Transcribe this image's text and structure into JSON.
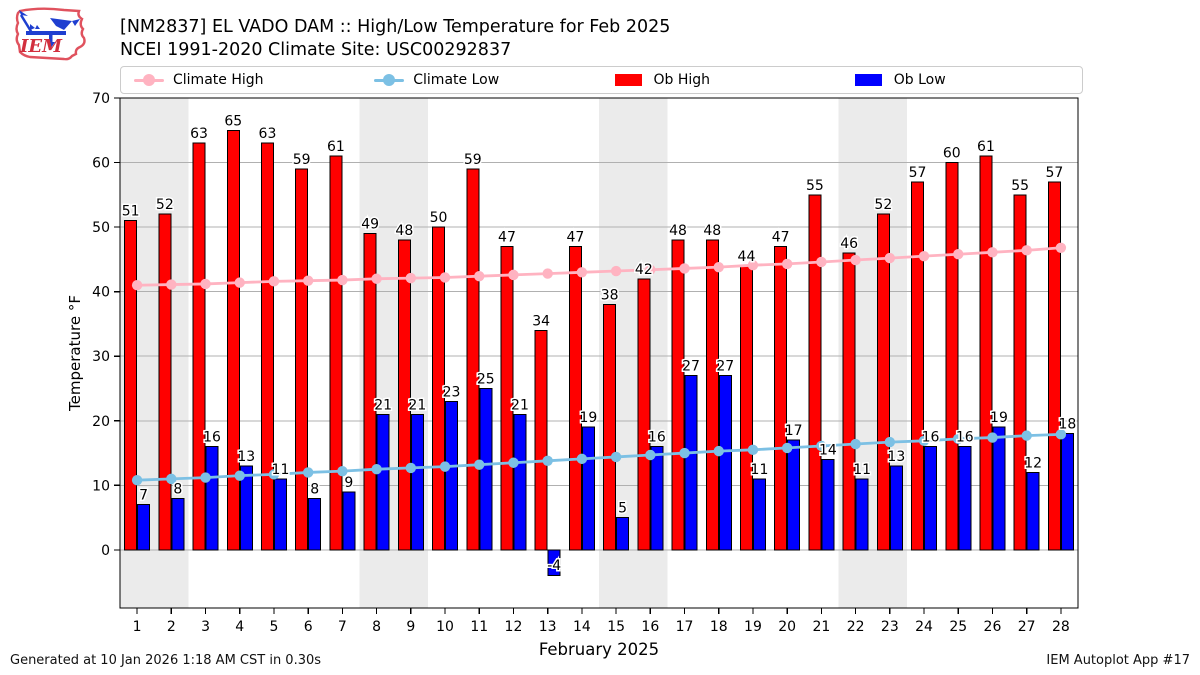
{
  "header": {
    "title_line1": "[NM2837] EL VADO DAM :: High/Low Temperature for Feb 2025",
    "title_line2": "NCEI 1991-2020 Climate Site: USC00292837",
    "logo_text": "IEM"
  },
  "legend": [
    {
      "label": "Climate High",
      "type": "line",
      "color": "#ffb3c1"
    },
    {
      "label": "Climate Low",
      "type": "line",
      "color": "#7cc0e4"
    },
    {
      "label": "Ob High",
      "type": "patch",
      "color": "#ff0000"
    },
    {
      "label": "Ob Low",
      "type": "patch",
      "color": "#0000ff"
    }
  ],
  "footer": {
    "left": "Generated at 10 Jan 2026 1:18 AM CST in 0.30s",
    "right": "IEM Autoplot App #17"
  },
  "chart_data": {
    "type": "bar",
    "title": "[NM2837] EL VADO DAM :: High/Low Temperature for Feb 2025",
    "subtitle": "NCEI 1991-2020 Climate Site: USC00292837",
    "xlabel": "February 2025",
    "ylabel": "Temperature °F",
    "x": [
      1,
      2,
      3,
      4,
      5,
      6,
      7,
      8,
      9,
      10,
      11,
      12,
      13,
      14,
      15,
      16,
      17,
      18,
      19,
      20,
      21,
      22,
      23,
      24,
      25,
      26,
      27,
      28
    ],
    "series": [
      {
        "name": "Ob High",
        "type": "bar",
        "color": "#ff0000",
        "values": [
          51,
          52,
          63,
          65,
          63,
          59,
          61,
          49,
          48,
          50,
          59,
          47,
          34,
          47,
          38,
          42,
          48,
          48,
          44,
          47,
          55,
          46,
          52,
          57,
          60,
          61,
          55,
          57
        ]
      },
      {
        "name": "Ob Low",
        "type": "bar",
        "color": "#0000ff",
        "values": [
          7,
          8,
          16,
          13,
          11,
          8,
          9,
          21,
          21,
          23,
          25,
          21,
          -4,
          19,
          5,
          16,
          27,
          27,
          11,
          17,
          14,
          11,
          13,
          16,
          16,
          19,
          12,
          18
        ]
      },
      {
        "name": "Climate High",
        "type": "line",
        "color": "#ffb3c1",
        "values": [
          41.0,
          41.1,
          41.2,
          41.4,
          41.6,
          41.7,
          41.8,
          42.0,
          42.1,
          42.2,
          42.4,
          42.6,
          42.8,
          43.0,
          43.2,
          43.4,
          43.6,
          43.8,
          44.1,
          44.3,
          44.6,
          44.9,
          45.2,
          45.5,
          45.8,
          46.1,
          46.4,
          46.8
        ]
      },
      {
        "name": "Climate Low",
        "type": "line",
        "color": "#7cc0e4",
        "values": [
          10.8,
          11.0,
          11.2,
          11.5,
          11.7,
          12.0,
          12.2,
          12.5,
          12.7,
          12.9,
          13.2,
          13.5,
          13.8,
          14.1,
          14.4,
          14.7,
          15.0,
          15.3,
          15.5,
          15.8,
          16.1,
          16.4,
          16.7,
          16.9,
          17.2,
          17.4,
          17.7,
          17.9
        ]
      }
    ],
    "ylim": [
      -9,
      70
    ],
    "yticks": [
      0,
      10,
      20,
      30,
      40,
      50,
      60,
      70
    ],
    "grid": true,
    "legend_position": "top",
    "weekend_bands_days": [
      [
        1,
        2
      ],
      [
        8,
        9
      ],
      [
        15,
        16
      ],
      [
        22,
        23
      ]
    ],
    "band_color": "#ebebeb",
    "grid_color": "#b0b0b0",
    "frame_color": "#000000",
    "label_color": "#000000"
  }
}
